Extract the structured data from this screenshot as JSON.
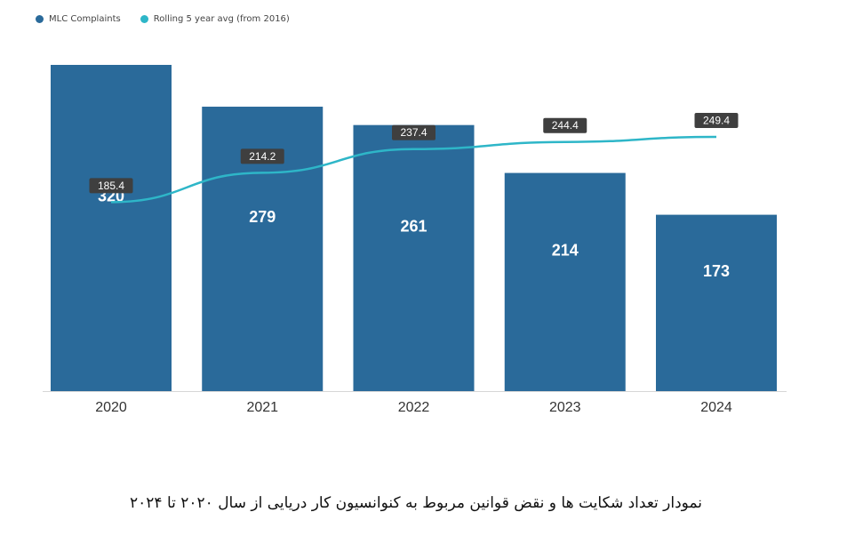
{
  "legend": {
    "items": [
      {
        "label": "MLC Complaints",
        "color": "#2a6a9a"
      },
      {
        "label": "Rolling 5 year avg (from 2016)",
        "color": "#2eb6c8"
      }
    ]
  },
  "chart_data": {
    "type": "bar",
    "categories": [
      "2020",
      "2021",
      "2022",
      "2023",
      "2024"
    ],
    "series": [
      {
        "name": "MLC Complaints",
        "type": "bar",
        "values": [
          320,
          279,
          261,
          214,
          173
        ],
        "color": "#2a6a9a"
      },
      {
        "name": "Rolling 5 year avg (from 2016)",
        "type": "line",
        "values": [
          185.4,
          214.2,
          237.4,
          244.4,
          249.4
        ],
        "color": "#2eb6c8"
      }
    ],
    "ylim": [
      0,
      320
    ],
    "grid": false,
    "legend_position": "top-left"
  },
  "caption": "نمودار  تعداد شکایت ها و نقض قوانین مربوط به کنوانسیون کار دریایی از سال ۲۰۲۰ تا ۲۰۲۴"
}
